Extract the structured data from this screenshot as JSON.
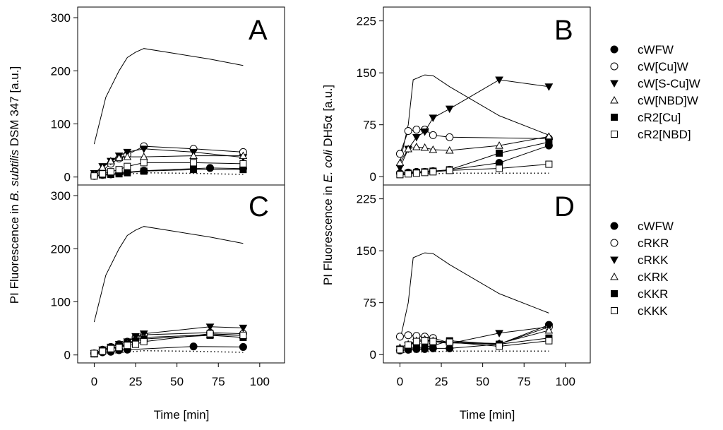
{
  "chart_data": [
    {
      "type": "line",
      "panel": "A",
      "letter": "A",
      "organism": "B. subtilis",
      "xlim": [
        -10,
        115
      ],
      "ylim": [
        -15,
        320
      ],
      "xticks": [
        0,
        25,
        50,
        75,
        100
      ],
      "yticks": [
        0,
        100,
        200,
        300
      ],
      "series": [
        {
          "name": "positive control",
          "style": "solid",
          "marker": "none",
          "x": [
            0,
            7,
            15,
            20,
            25,
            30,
            70,
            90
          ],
          "y": [
            62,
            150,
            200,
            225,
            235,
            242,
            222,
            210
          ]
        },
        {
          "name": "negative control",
          "style": "dotted",
          "marker": "none",
          "x": [
            0,
            15,
            30,
            60,
            90
          ],
          "y": [
            2,
            4,
            8,
            7,
            5
          ]
        },
        {
          "name": "cWFW",
          "marker": "filled-circle",
          "x": [
            0,
            5,
            10,
            15,
            20,
            30,
            70,
            90
          ],
          "y": [
            2,
            4,
            5,
            7,
            9,
            12,
            17,
            16
          ]
        },
        {
          "name": "cW[Cu]W",
          "marker": "open-circle",
          "x": [
            0,
            5,
            10,
            15,
            20,
            30,
            60,
            90
          ],
          "y": [
            3,
            12,
            25,
            35,
            42,
            58,
            53,
            47
          ]
        },
        {
          "name": "cW[S-Cu]W",
          "marker": "filled-triangle-down",
          "x": [
            0,
            5,
            10,
            15,
            20,
            30,
            60,
            90
          ],
          "y": [
            7,
            20,
            30,
            40,
            47,
            53,
            47,
            37
          ]
        },
        {
          "name": "cW[NBD]W",
          "marker": "open-triangle-up",
          "x": [
            0,
            5,
            10,
            15,
            20,
            30,
            60,
            90
          ],
          "y": [
            5,
            18,
            30,
            36,
            38,
            38,
            40,
            40
          ]
        },
        {
          "name": "cR2[Cu]",
          "marker": "filled-square",
          "x": [
            0,
            5,
            10,
            15,
            20,
            30,
            60,
            90
          ],
          "y": [
            2,
            4,
            5,
            6,
            8,
            11,
            14,
            14
          ]
        },
        {
          "name": "cR2[NBD]",
          "marker": "open-square",
          "x": [
            0,
            5,
            10,
            15,
            20,
            30,
            60,
            90
          ],
          "y": [
            2,
            6,
            10,
            14,
            20,
            27,
            27,
            25
          ]
        }
      ]
    },
    {
      "type": "line",
      "panel": "B",
      "letter": "B",
      "organism": "E. coli",
      "xlim": [
        -10,
        115
      ],
      "ylim": [
        -12,
        245
      ],
      "xticks": [
        0,
        25,
        50,
        75,
        100
      ],
      "yticks": [
        0,
        75,
        150,
        225
      ],
      "series": [
        {
          "name": "positive control",
          "style": "solid",
          "marker": "none",
          "x": [
            0,
            5,
            8,
            15,
            20,
            30,
            60,
            90
          ],
          "y": [
            20,
            75,
            140,
            147,
            146,
            130,
            88,
            60
          ]
        },
        {
          "name": "negative control",
          "style": "dotted",
          "marker": "none",
          "x": [
            0,
            15,
            30,
            60,
            90
          ],
          "y": [
            3,
            4,
            5,
            5,
            5
          ]
        },
        {
          "name": "cWFW",
          "marker": "filled-circle",
          "x": [
            0,
            5,
            10,
            15,
            20,
            30,
            60,
            90
          ],
          "y": [
            5,
            6,
            7,
            7,
            8,
            10,
            20,
            45
          ]
        },
        {
          "name": "cW[Cu]W",
          "marker": "open-circle",
          "x": [
            0,
            5,
            10,
            15,
            20,
            30,
            90
          ],
          "y": [
            33,
            66,
            68,
            68,
            60,
            57,
            55
          ]
        },
        {
          "name": "cW[S-Cu]W",
          "marker": "filled-triangle-down",
          "x": [
            0,
            5,
            10,
            15,
            20,
            30,
            60,
            90
          ],
          "y": [
            13,
            40,
            57,
            65,
            85,
            98,
            140,
            130
          ]
        },
        {
          "name": "cW[NBD]W",
          "marker": "open-triangle-up",
          "x": [
            0,
            5,
            10,
            15,
            20,
            30,
            60,
            90
          ],
          "y": [
            20,
            40,
            43,
            42,
            39,
            38,
            45,
            58
          ]
        },
        {
          "name": "cR2[Cu]",
          "marker": "filled-square",
          "x": [
            0,
            5,
            10,
            15,
            20,
            30,
            60,
            90
          ],
          "y": [
            3,
            5,
            6,
            7,
            8,
            10,
            34,
            50
          ]
        },
        {
          "name": "cR2[NBD]",
          "marker": "open-square",
          "x": [
            0,
            5,
            10,
            15,
            20,
            30,
            60,
            90
          ],
          "y": [
            3,
            4,
            5,
            6,
            7,
            9,
            12,
            18
          ]
        }
      ]
    },
    {
      "type": "line",
      "panel": "C",
      "letter": "C",
      "organism": "B. subtilis",
      "xlim": [
        -10,
        115
      ],
      "ylim": [
        -15,
        320
      ],
      "xticks": [
        0,
        25,
        50,
        75,
        100
      ],
      "yticks": [
        0,
        100,
        200,
        300
      ],
      "series": [
        {
          "name": "positive control",
          "style": "solid",
          "marker": "none",
          "x": [
            0,
            7,
            15,
            20,
            25,
            30,
            70,
            90
          ],
          "y": [
            62,
            150,
            200,
            225,
            235,
            242,
            222,
            210
          ]
        },
        {
          "name": "negative control",
          "style": "dotted",
          "marker": "none",
          "x": [
            0,
            15,
            30,
            60,
            90
          ],
          "y": [
            2,
            4,
            8,
            7,
            5
          ]
        },
        {
          "name": "cWFW",
          "marker": "filled-circle",
          "x": [
            0,
            5,
            10,
            15,
            20,
            60,
            90
          ],
          "y": [
            3,
            5,
            6,
            9,
            10,
            16,
            15
          ]
        },
        {
          "name": "cRKR",
          "marker": "open-circle",
          "x": [
            0,
            5,
            10,
            15,
            20,
            25,
            30,
            70,
            90
          ],
          "y": [
            3,
            10,
            15,
            20,
            25,
            33,
            38,
            42,
            40
          ]
        },
        {
          "name": "cRKK",
          "marker": "filled-triangle-down",
          "x": [
            0,
            5,
            10,
            15,
            20,
            25,
            30,
            70,
            90
          ],
          "y": [
            3,
            10,
            15,
            20,
            25,
            35,
            40,
            53,
            51
          ]
        },
        {
          "name": "cKRK",
          "marker": "open-triangle-up",
          "x": [
            0,
            5,
            10,
            15,
            20,
            25,
            30,
            70,
            90
          ],
          "y": [
            2,
            8,
            12,
            17,
            22,
            28,
            33,
            38,
            37
          ]
        },
        {
          "name": "cKKR",
          "marker": "filled-square",
          "x": [
            0,
            5,
            10,
            15,
            20,
            25,
            30,
            70,
            90
          ],
          "y": [
            2,
            8,
            12,
            15,
            20,
            26,
            30,
            37,
            33
          ]
        },
        {
          "name": "cKKK",
          "marker": "open-square",
          "x": [
            0,
            5,
            10,
            15,
            20,
            25,
            30,
            70,
            90
          ],
          "y": [
            3,
            7,
            12,
            14,
            18,
            20,
            25,
            40,
            37
          ]
        }
      ]
    },
    {
      "type": "line",
      "panel": "D",
      "letter": "D",
      "organism": "E. coli",
      "xlim": [
        -10,
        115
      ],
      "ylim": [
        -12,
        245
      ],
      "xticks": [
        0,
        25,
        50,
        75,
        100
      ],
      "yticks": [
        0,
        75,
        150,
        225
      ],
      "series": [
        {
          "name": "positive control",
          "style": "solid",
          "marker": "none",
          "x": [
            0,
            5,
            8,
            15,
            20,
            30,
            60,
            90
          ],
          "y": [
            20,
            75,
            140,
            147,
            146,
            130,
            88,
            60
          ]
        },
        {
          "name": "negative control",
          "style": "dotted",
          "marker": "none",
          "x": [
            0,
            15,
            30,
            60,
            90
          ],
          "y": [
            3,
            4,
            5,
            5,
            5
          ]
        },
        {
          "name": "cWFW",
          "marker": "filled-circle",
          "x": [
            0,
            5,
            10,
            15,
            20,
            30,
            60,
            90
          ],
          "y": [
            6,
            7,
            8,
            8,
            9,
            9,
            15,
            43
          ]
        },
        {
          "name": "cRKR",
          "marker": "open-circle",
          "x": [
            0,
            5,
            10,
            15,
            20,
            30,
            60,
            90
          ],
          "y": [
            26,
            28,
            27,
            26,
            24,
            17,
            15,
            40
          ]
        },
        {
          "name": "cRKK",
          "marker": "filled-triangle-down",
          "x": [
            0,
            5,
            10,
            15,
            20,
            30,
            60,
            90
          ],
          "y": [
            8,
            13,
            18,
            21,
            19,
            16,
            31,
            40
          ]
        },
        {
          "name": "cKRK",
          "marker": "open-triangle-up",
          "x": [
            0,
            5,
            10,
            15,
            20,
            30,
            60,
            90
          ],
          "y": [
            10,
            15,
            20,
            22,
            20,
            18,
            16,
            35
          ]
        },
        {
          "name": "cKKR",
          "marker": "filled-square",
          "x": [
            0,
            5,
            10,
            15,
            20,
            30,
            60,
            90
          ],
          "y": [
            8,
            9,
            10,
            11,
            13,
            20,
            15,
            24
          ]
        },
        {
          "name": "cKKK",
          "marker": "open-square",
          "x": [
            0,
            5,
            10,
            15,
            20,
            30,
            60,
            90
          ],
          "y": [
            7,
            14,
            19,
            20,
            19,
            18,
            12,
            20
          ]
        }
      ]
    }
  ],
  "axes": {
    "left_ylabel": {
      "prefix": "PI Fluorescence in ",
      "species": "B. subtilis",
      "suffix": " DSM 347 [a.u.]"
    },
    "right_ylabel": {
      "prefix": "PI Fluorescence in ",
      "species": "E. coli",
      "suffix": " DH5",
      "alpha": "α",
      "unit": " [a.u.]"
    },
    "xlabel_left": "Time [min]",
    "xlabel_right": "Time [min]"
  },
  "legends": {
    "top": [
      {
        "label": "cWFW",
        "marker": "filled-circle"
      },
      {
        "label": "cW[Cu]W",
        "marker": "open-circle"
      },
      {
        "label": "cW[S-Cu]W",
        "marker": "filled-triangle-down"
      },
      {
        "label": "cW[NBD]W",
        "marker": "open-triangle-up"
      },
      {
        "label": "cR2[Cu]",
        "marker": "filled-square"
      },
      {
        "label": "cR2[NBD]",
        "marker": "open-square"
      }
    ],
    "bottom": [
      {
        "label": "cWFW",
        "marker": "filled-circle"
      },
      {
        "label": "cRKR",
        "marker": "open-circle"
      },
      {
        "label": "cRKK",
        "marker": "filled-triangle-down"
      },
      {
        "label": "cKRK",
        "marker": "open-triangle-up"
      },
      {
        "label": "cKKR",
        "marker": "filled-square"
      },
      {
        "label": "cKKK",
        "marker": "open-square"
      }
    ]
  }
}
